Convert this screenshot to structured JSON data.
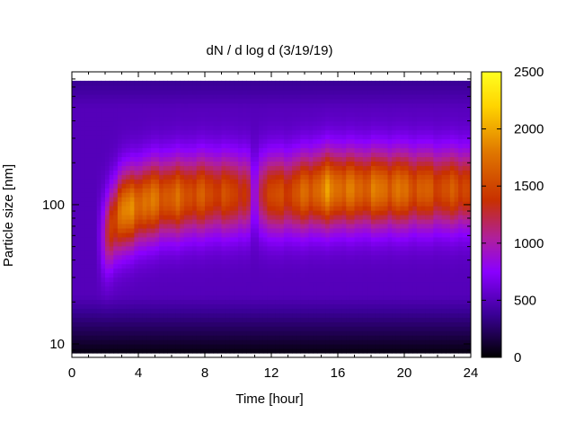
{
  "chart_data": {
    "type": "heatmap",
    "title": "dN / d log d (3/19/19)",
    "xlabel": "Time [hour]",
    "ylabel": "Particle size [nm]",
    "xlim": [
      0,
      24
    ],
    "x_ticks": [
      0,
      4,
      8,
      12,
      16,
      20,
      24
    ],
    "y_scale": "log",
    "ylim_nm": [
      8,
      900
    ],
    "y_tick_labels": [
      "10",
      "100"
    ],
    "y_tick_values": [
      10,
      100
    ],
    "colorbar": {
      "range": [
        0,
        2500
      ],
      "ticks": [
        0,
        500,
        1000,
        1500,
        2000,
        2500
      ],
      "colormap": [
        "#000000",
        "#3a0096",
        "#8a00ff",
        "#b0209a",
        "#c83000",
        "#e07800",
        "#ffd400",
        "#ffff20"
      ]
    },
    "grid": false,
    "legend": "colorbar-right",
    "approx_mode_diameter_nm_by_hour": [
      {
        "hour": 2,
        "mode_nm": 60,
        "peak_value": 1300
      },
      {
        "hour": 3,
        "mode_nm": 90,
        "peak_value": 1800
      },
      {
        "hour": 4,
        "mode_nm": 100,
        "peak_value": 1800
      },
      {
        "hour": 5,
        "mode_nm": 110,
        "peak_value": 1700
      },
      {
        "hour": 8,
        "mode_nm": 120,
        "peak_value": 1550
      },
      {
        "hour": 10,
        "mode_nm": 120,
        "peak_value": 1450
      },
      {
        "hour": 13,
        "mode_nm": 120,
        "peak_value": 1500
      },
      {
        "hour": 15.5,
        "mode_nm": 130,
        "peak_value": 1850
      },
      {
        "hour": 17,
        "mode_nm": 130,
        "peak_value": 1700
      },
      {
        "hour": 19,
        "mode_nm": 130,
        "peak_value": 1750
      },
      {
        "hour": 22,
        "mode_nm": 130,
        "peak_value": 1550
      }
    ]
  }
}
